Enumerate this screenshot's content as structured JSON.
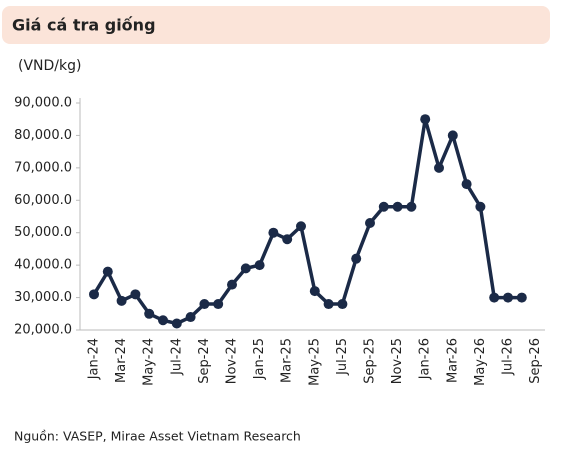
{
  "chart_data": {
    "type": "line",
    "title": "Giá cá tra giống",
    "ylabel": "(VND/kg)",
    "source": "Nguồn: VASEP, Mirae Asset Vietnam Research",
    "categories": [
      "Jan-24",
      null,
      "Mar-24",
      null,
      "May-24",
      null,
      "Jul-24",
      null,
      "Sep-24",
      null,
      "Nov-24",
      null,
      "Jan-25",
      null,
      "Mar-25",
      null,
      "May-25",
      null,
      "Jul-25",
      null,
      "Sep-25",
      null,
      "Nov-25",
      null,
      "Jan-26",
      null,
      "Mar-26",
      null,
      "May-26",
      null,
      "Jul-26",
      null,
      "Sep-26"
    ],
    "series": [
      {
        "name": "Giá cá tra giống",
        "color": "#1b2a47",
        "values": [
          31000,
          38000,
          29000,
          31000,
          25000,
          23000,
          22000,
          24000,
          28000,
          28000,
          34000,
          39000,
          40000,
          50000,
          48000,
          52000,
          32000,
          28000,
          28000,
          42000,
          53000,
          58000,
          58000,
          58000,
          85000,
          70000,
          80000,
          65000,
          58000,
          30000,
          30000,
          30000,
          null
        ]
      }
    ],
    "ylim": [
      20000,
      90000
    ],
    "yticks": [
      {
        "value": 20000,
        "label": "20,000.0"
      },
      {
        "value": 30000,
        "label": "30,000.0"
      },
      {
        "value": 40000,
        "label": "40,000.0"
      },
      {
        "value": 50000,
        "label": "50,000.0"
      },
      {
        "value": 60000,
        "label": "60,000.0"
      },
      {
        "value": 70000,
        "label": "70,000.0"
      },
      {
        "value": 80000,
        "label": "80,000.0"
      },
      {
        "value": 90000,
        "label": "90,000.0"
      }
    ],
    "grid": false
  }
}
